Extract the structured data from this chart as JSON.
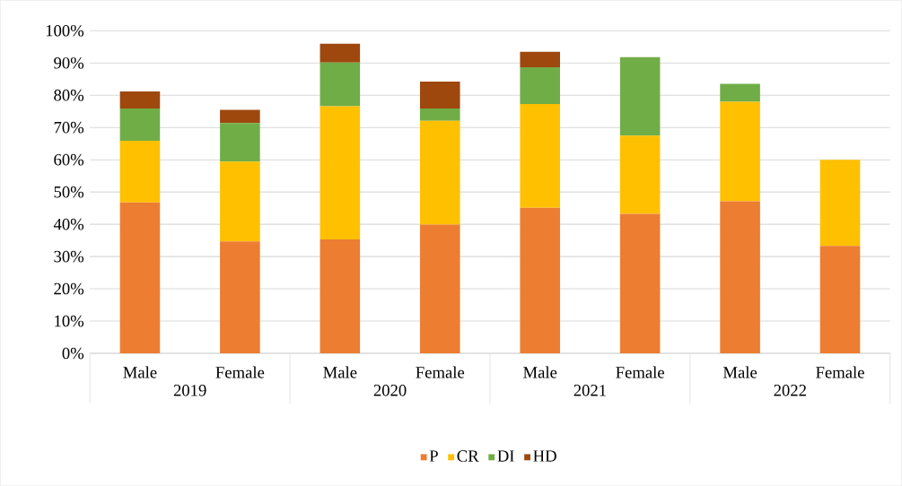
{
  "chart_data": {
    "type": "bar",
    "stacked": true,
    "categories": [
      "Male",
      "Female",
      "Male",
      "Female",
      "Male",
      "Female",
      "Male",
      "Female"
    ],
    "series": [
      {
        "name": "P",
        "color": "#ed7d31",
        "values": [
          46.8,
          34.7,
          35.3,
          39.9,
          45.1,
          43.2,
          47.1,
          33.3
        ]
      },
      {
        "name": "CR",
        "color": "#ffc000",
        "values": [
          19.1,
          24.7,
          41.3,
          32.2,
          32.2,
          24.3,
          30.9,
          26.7
        ]
      },
      {
        "name": "DI",
        "color": "#70ad47",
        "values": [
          10.0,
          12.0,
          13.5,
          3.8,
          11.4,
          24.3,
          5.5,
          0
        ]
      },
      {
        "name": "HD",
        "color": "#9e480e",
        "values": [
          5.3,
          4.1,
          5.9,
          8.3,
          4.8,
          0,
          0,
          0
        ]
      }
    ],
    "annotations": [
      "2019",
      "2020",
      "2021",
      "2022"
    ],
    "ylim": [
      0,
      100
    ],
    "yticks": [
      {
        "value": 0,
        "label": "0%"
      },
      {
        "value": 10,
        "label": "10%"
      },
      {
        "value": 20,
        "label": "20%"
      },
      {
        "value": 30,
        "label": "30%"
      },
      {
        "value": 40,
        "label": "40%"
      },
      {
        "value": 50,
        "label": "50%"
      },
      {
        "value": 60,
        "label": "60%"
      },
      {
        "value": 70,
        "label": "70%"
      },
      {
        "value": 80,
        "label": "80%"
      },
      {
        "value": 90,
        "label": "90%"
      },
      {
        "value": 100,
        "label": "100%"
      }
    ],
    "grid": "y",
    "legend": "bottom"
  }
}
